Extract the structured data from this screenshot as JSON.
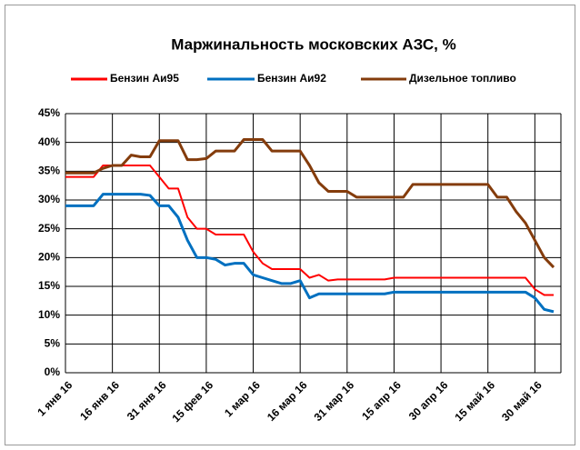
{
  "chart_data": {
    "type": "line",
    "title": "Маржинальность московских АЗС, %",
    "categories": [
      "1 янв 16",
      null,
      null,
      null,
      null,
      "16 янв 16",
      null,
      null,
      null,
      null,
      "31 янв 16",
      null,
      null,
      null,
      null,
      "15 фев 16",
      null,
      null,
      null,
      null,
      "1 мар 16",
      null,
      null,
      null,
      null,
      "16 мар 16",
      null,
      null,
      null,
      null,
      "31 мар 16",
      null,
      null,
      null,
      null,
      "15 апр 16",
      null,
      null,
      null,
      null,
      "30 апр 16",
      null,
      null,
      null,
      null,
      "15 май 16",
      null,
      null,
      null,
      null,
      "30 май 16",
      null,
      null
    ],
    "series": [
      {
        "name": "Бензин Аи95",
        "color": "#ff0000",
        "values": [
          34,
          34,
          34,
          34,
          36,
          36,
          36,
          36,
          36,
          36,
          34,
          32,
          32,
          27,
          25,
          25,
          24,
          24,
          24,
          24,
          21,
          19,
          18,
          18,
          18,
          18,
          16.5,
          17,
          16,
          16.2,
          16.2,
          16.2,
          16.2,
          16.2,
          16.2,
          16.5,
          16.5,
          16.5,
          16.5,
          16.5,
          16.5,
          16.5,
          16.5,
          16.5,
          16.5,
          16.5,
          16.5,
          16.5,
          16.5,
          16.5,
          14.5,
          13.5,
          13.5
        ]
      },
      {
        "name": "Бензин Аи92",
        "color": "#0070c0",
        "values": [
          29,
          29,
          29,
          29,
          31,
          31,
          31,
          31,
          31,
          30.8,
          29,
          29,
          27,
          23,
          20,
          20,
          19.7,
          18.7,
          19,
          19,
          17,
          16.5,
          16,
          15.5,
          15.5,
          16,
          13,
          13.7,
          13.7,
          13.7,
          13.7,
          13.7,
          13.7,
          13.7,
          13.7,
          14,
          14,
          14,
          14,
          14,
          14,
          14,
          14,
          14,
          14,
          14,
          14,
          14,
          14,
          14,
          13,
          11,
          10.6
        ]
      },
      {
        "name": "Дизельное топливо",
        "color": "#843c0c",
        "values": [
          34.7,
          34.7,
          34.7,
          34.7,
          35.5,
          36,
          36,
          37.8,
          37.5,
          37.5,
          40.3,
          40.3,
          40.3,
          37,
          37,
          37.2,
          38.5,
          38.5,
          38.5,
          40.5,
          40.5,
          40.5,
          38.5,
          38.5,
          38.5,
          38.5,
          36,
          33,
          31.5,
          31.5,
          31.5,
          30.5,
          30.5,
          30.5,
          30.5,
          30.5,
          30.5,
          32.7,
          32.7,
          32.7,
          32.7,
          32.7,
          32.7,
          32.7,
          32.7,
          32.7,
          30.5,
          30.5,
          28,
          26,
          23,
          20,
          18.3
        ]
      }
    ],
    "ylim": [
      0,
      45
    ],
    "yticks": [
      {
        "value": 0,
        "label": "0%"
      },
      {
        "value": 5,
        "label": "5%"
      },
      {
        "value": 10,
        "label": "10%"
      },
      {
        "value": 15,
        "label": "15%"
      },
      {
        "value": 20,
        "label": "20%"
      },
      {
        "value": 25,
        "label": "25%"
      },
      {
        "value": 30,
        "label": "30%"
      },
      {
        "value": 35,
        "label": "35%"
      },
      {
        "value": 40,
        "label": "40%"
      },
      {
        "value": 45,
        "label": "45%"
      }
    ],
    "grid": true
  }
}
